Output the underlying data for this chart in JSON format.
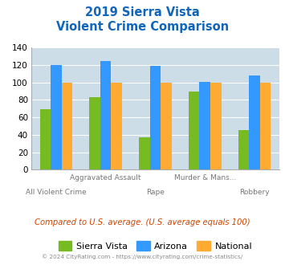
{
  "title_line1": "2019 Sierra Vista",
  "title_line2": "Violent Crime Comparison",
  "sierra_vista": [
    69,
    83,
    37,
    90,
    45
  ],
  "arizona": [
    120,
    125,
    119,
    101,
    108
  ],
  "national": [
    100,
    100,
    100,
    100,
    100
  ],
  "sierra_vista_color": "#77bb22",
  "arizona_color": "#3399ff",
  "national_color": "#ffaa33",
  "ylim": [
    0,
    140
  ],
  "yticks": [
    0,
    20,
    40,
    60,
    80,
    100,
    120,
    140
  ],
  "title_color": "#1166bb",
  "bg_color": "#ccdde8",
  "subtitle_text": "Compared to U.S. average. (U.S. average equals 100)",
  "subtitle_color": "#cc4400",
  "footer_text": "© 2024 CityRating.com - https://www.cityrating.com/crime-statistics/",
  "footer_color": "#888888",
  "top_labels": [
    "",
    "Aggravated Assault",
    "",
    "Murder & Mans...",
    ""
  ],
  "bottom_labels": [
    "All Violent Crime",
    "",
    "Rape",
    "",
    "Robbery"
  ]
}
